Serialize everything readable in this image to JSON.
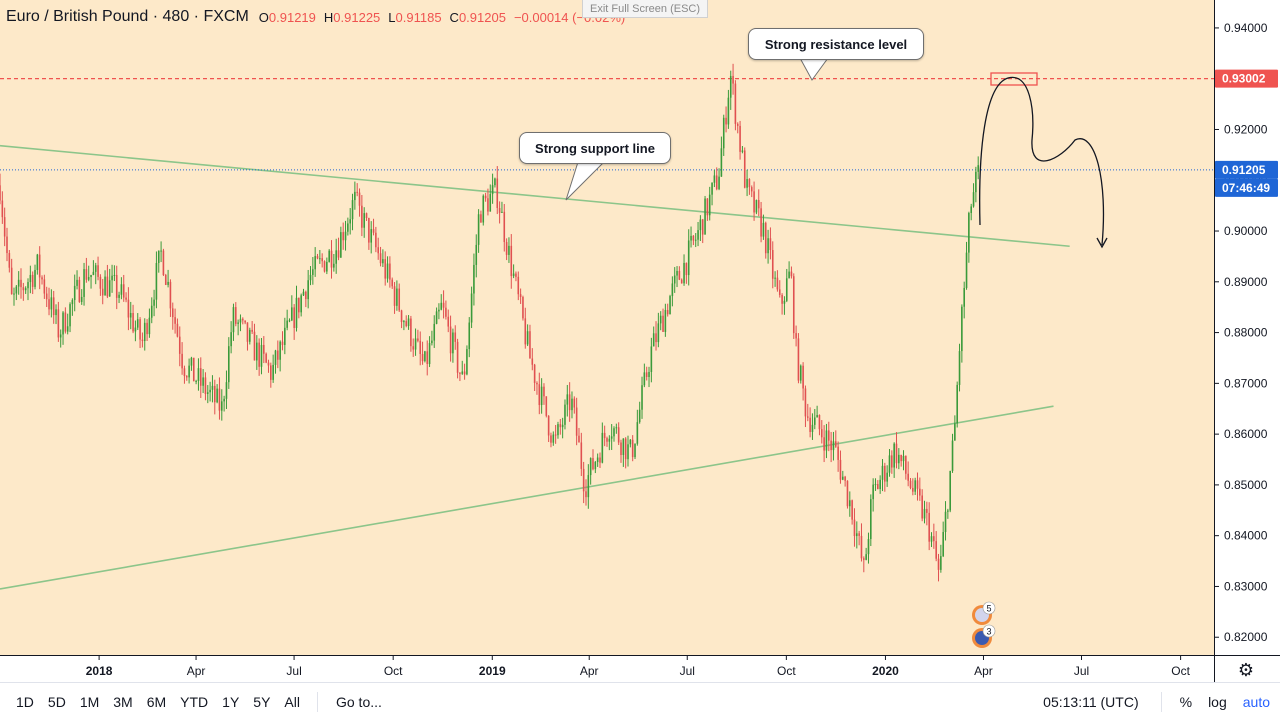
{
  "header": {
    "symbol": "Euro / British Pound",
    "interval": "480",
    "exchange": "FXCM",
    "ohlc": [
      {
        "key": "O",
        "value": "0.91219"
      },
      {
        "key": "H",
        "value": "0.91225"
      },
      {
        "key": "L",
        "value": "0.91185"
      },
      {
        "key": "C",
        "value": "0.91205"
      }
    ],
    "change": "−0.00014 (−0.02%)"
  },
  "exit_fullscreen": "Exit Full Screen (ESC)",
  "annotations": {
    "resistance_label": "Strong resistance level",
    "support_label": "Strong support line"
  },
  "price_tags": {
    "resistance": "0.93002",
    "last": "0.91205",
    "countdown": "07:46:49"
  },
  "events": [
    {
      "icon": "uk-flag-icon",
      "count": "5"
    },
    {
      "icon": "eu-flag-icon",
      "count": "3"
    }
  ],
  "toolbar": {
    "ranges": [
      "1D",
      "5D",
      "1M",
      "3M",
      "6M",
      "YTD",
      "1Y",
      "5Y",
      "All"
    ],
    "goto": "Go to...",
    "clock": "05:13:11 (UTC)",
    "percent": "%",
    "log": "log",
    "auto": "auto"
  },
  "colors": {
    "background": "#fde9c9",
    "up": "#3a9a3a",
    "down": "#e05050",
    "trendline": "#8cc58a",
    "resistance": "#ef5350",
    "last_price": "#1f66d6"
  },
  "chart_data": {
    "type": "candlestick",
    "y_axis": {
      "ticks": [
        "0.94000",
        "0.93000",
        "0.92000",
        "0.91000",
        "0.90000",
        "0.89000",
        "0.88000",
        "0.87000",
        "0.86000",
        "0.85000",
        "0.84000",
        "0.83000",
        "0.82000"
      ],
      "range": [
        0.8165,
        0.9455
      ]
    },
    "x_axis": {
      "ticks": [
        "2018",
        "Apr",
        "Jul",
        "Oct",
        "2019",
        "Apr",
        "Jul",
        "Oct",
        "2020",
        "Apr",
        "Jul",
        "Oct"
      ],
      "tick_dates": [
        "2018-01-01",
        "2018-04-01",
        "2018-07-01",
        "2018-10-01",
        "2019-01-01",
        "2019-04-01",
        "2019-07-01",
        "2019-10-01",
        "2020-01-01",
        "2020-04-01",
        "2020-07-01",
        "2020-10-01"
      ],
      "range": [
        "2017-10-01",
        "2020-11-01"
      ]
    },
    "price_path": [
      [
        "2017-10-01",
        0.909
      ],
      [
        "2017-10-12",
        0.886
      ],
      [
        "2017-11-05",
        0.893
      ],
      [
        "2017-11-25",
        0.88
      ],
      [
        "2017-12-20",
        0.892
      ],
      [
        "2018-01-20",
        0.888
      ],
      [
        "2018-02-10",
        0.878
      ],
      [
        "2018-02-28",
        0.896
      ],
      [
        "2018-03-20",
        0.874
      ],
      [
        "2018-04-25",
        0.865
      ],
      [
        "2018-05-05",
        0.883
      ],
      [
        "2018-06-10",
        0.872
      ],
      [
        "2018-07-15",
        0.891
      ],
      [
        "2018-08-10",
        0.897
      ],
      [
        "2018-08-26",
        0.906
      ],
      [
        "2018-09-20",
        0.894
      ],
      [
        "2018-10-30",
        0.873
      ],
      [
        "2018-11-15",
        0.885
      ],
      [
        "2018-12-05",
        0.87
      ],
      [
        "2018-12-20",
        0.904
      ],
      [
        "2019-01-05",
        0.908
      ],
      [
        "2019-01-15",
        0.897
      ],
      [
        "2019-02-05",
        0.875
      ],
      [
        "2019-02-28",
        0.858
      ],
      [
        "2019-03-15",
        0.867
      ],
      [
        "2019-03-28",
        0.85
      ],
      [
        "2019-04-20",
        0.862
      ],
      [
        "2019-05-10",
        0.856
      ],
      [
        "2019-05-28",
        0.876
      ],
      [
        "2019-06-15",
        0.887
      ],
      [
        "2019-07-10",
        0.899
      ],
      [
        "2019-07-30",
        0.911
      ],
      [
        "2019-08-10",
        0.931
      ],
      [
        "2019-08-25",
        0.908
      ],
      [
        "2019-09-10",
        0.9
      ],
      [
        "2019-09-25",
        0.885
      ],
      [
        "2019-10-05",
        0.892
      ],
      [
        "2019-10-10",
        0.876
      ],
      [
        "2019-10-20",
        0.864
      ],
      [
        "2019-11-15",
        0.857
      ],
      [
        "2019-12-01",
        0.845
      ],
      [
        "2019-12-12",
        0.833
      ],
      [
        "2019-12-20",
        0.848
      ],
      [
        "2020-01-10",
        0.857
      ],
      [
        "2020-02-10",
        0.842
      ],
      [
        "2020-02-20",
        0.832
      ],
      [
        "2020-03-05",
        0.86
      ],
      [
        "2020-03-10",
        0.878
      ],
      [
        "2020-03-20",
        0.905
      ],
      [
        "2020-03-28",
        0.912
      ]
    ],
    "last_price": 0.91205,
    "resistance_level": 0.93002,
    "trendlines": [
      {
        "from": [
          "2017-10-01",
          0.9168
        ],
        "to": [
          "2020-06-20",
          0.897
        ]
      },
      {
        "from": [
          "2017-10-01",
          0.8295
        ],
        "to": [
          "2020-06-05",
          0.8655
        ]
      }
    ]
  }
}
